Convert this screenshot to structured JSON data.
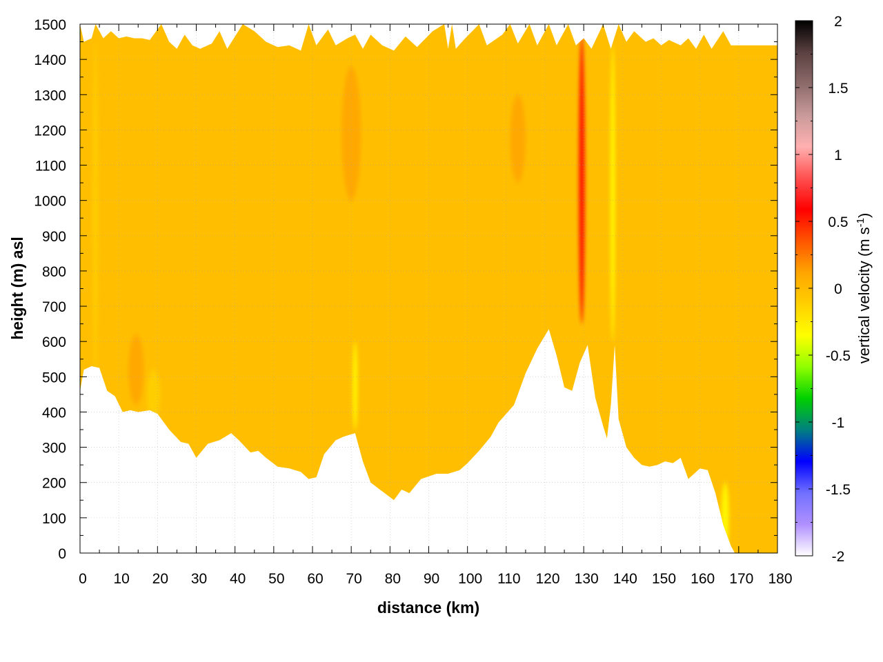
{
  "chart_data": {
    "type": "heatmap",
    "xlabel": "distance (km)",
    "ylabel": "height (m) asl",
    "colorbar_label": "vertical velocity (m s",
    "colorbar_label_sup": "-1",
    "colorbar_label_end": ")",
    "xlim": [
      0,
      180
    ],
    "ylim": [
      0,
      1500
    ],
    "clim": [
      -2,
      2
    ],
    "grid": true,
    "x_ticks": [
      0,
      10,
      20,
      30,
      40,
      50,
      60,
      70,
      80,
      90,
      100,
      110,
      120,
      130,
      140,
      150,
      160,
      170,
      180
    ],
    "x_tick_labels": [
      "0",
      "10",
      "20",
      "30",
      "40",
      "50",
      "60",
      "70",
      "80",
      "90",
      "100",
      "110",
      "120",
      "130",
      "140",
      "150",
      "160",
      "170",
      "180"
    ],
    "y_ticks": [
      0,
      100,
      200,
      300,
      400,
      500,
      600,
      700,
      800,
      900,
      1000,
      1100,
      1200,
      1300,
      1400,
      1500
    ],
    "y_tick_labels": [
      "0",
      "100",
      "200",
      "300",
      "400",
      "500",
      "600",
      "700",
      "800",
      "900",
      "1000",
      "1100",
      "1200",
      "1300",
      "1400",
      "1500"
    ],
    "colorbar_ticks": [
      2,
      1.5,
      1,
      0.5,
      0,
      -0.5,
      -1,
      -1.5,
      -2
    ],
    "colorbar_tick_labels": [
      "2",
      "1.5",
      "1",
      "0.5",
      "0",
      "-0.5",
      "-1",
      "-1.5",
      "-2"
    ],
    "colorbar_colors": [
      "#000000",
      "#5a4040",
      "#8c6a6a",
      "#c99a9a",
      "#ffb0b0",
      "#ff5050",
      "#ff0000",
      "#ff5500",
      "#ffa500",
      "#ffd000",
      "#ffff00",
      "#90ff00",
      "#00d000",
      "#008080",
      "#0000ff",
      "#7070ff",
      "#b090ff",
      "#ffffff"
    ],
    "base_color": "#ffbf00",
    "lower_boundary": [
      [
        0,
        460
      ],
      [
        1,
        520
      ],
      [
        3,
        530
      ],
      [
        5,
        525
      ],
      [
        7,
        460
      ],
      [
        9,
        445
      ],
      [
        11,
        400
      ],
      [
        13,
        405
      ],
      [
        15,
        400
      ],
      [
        18,
        405
      ],
      [
        20,
        395
      ],
      [
        23,
        350
      ],
      [
        26,
        315
      ],
      [
        28,
        310
      ],
      [
        30,
        270
      ],
      [
        33,
        310
      ],
      [
        36,
        320
      ],
      [
        39,
        340
      ],
      [
        41,
        320
      ],
      [
        44,
        285
      ],
      [
        46,
        290
      ],
      [
        48,
        270
      ],
      [
        51,
        245
      ],
      [
        54,
        240
      ],
      [
        57,
        230
      ],
      [
        59,
        210
      ],
      [
        61,
        215
      ],
      [
        63,
        280
      ],
      [
        66,
        320
      ],
      [
        68,
        330
      ],
      [
        71,
        340
      ],
      [
        73,
        260
      ],
      [
        75,
        200
      ],
      [
        78,
        175
      ],
      [
        81,
        150
      ],
      [
        83,
        180
      ],
      [
        85,
        170
      ],
      [
        88,
        210
      ],
      [
        92,
        225
      ],
      [
        95,
        225
      ],
      [
        98,
        235
      ],
      [
        100,
        255
      ],
      [
        103,
        290
      ],
      [
        106,
        330
      ],
      [
        108,
        370
      ],
      [
        112,
        420
      ],
      [
        115,
        510
      ],
      [
        118,
        580
      ],
      [
        121,
        635
      ],
      [
        123,
        560
      ],
      [
        125,
        470
      ],
      [
        127,
        460
      ],
      [
        129,
        540
      ],
      [
        131,
        590
      ],
      [
        133,
        440
      ],
      [
        135,
        360
      ],
      [
        136,
        325
      ],
      [
        137,
        420
      ],
      [
        138,
        590
      ],
      [
        139,
        380
      ],
      [
        141,
        300
      ],
      [
        143,
        270
      ],
      [
        145,
        250
      ],
      [
        147,
        245
      ],
      [
        149,
        250
      ],
      [
        151,
        260
      ],
      [
        153,
        255
      ],
      [
        155,
        270
      ],
      [
        157,
        210
      ],
      [
        160,
        240
      ],
      [
        162,
        235
      ],
      [
        164,
        170
      ],
      [
        166,
        80
      ],
      [
        168,
        20
      ],
      [
        169,
        0
      ],
      [
        180,
        0
      ]
    ],
    "upper_boundary": [
      [
        0,
        1500
      ],
      [
        1,
        1450
      ],
      [
        3,
        1460
      ],
      [
        4,
        1500
      ],
      [
        6,
        1460
      ],
      [
        8,
        1480
      ],
      [
        10,
        1460
      ],
      [
        12,
        1465
      ],
      [
        14,
        1460
      ],
      [
        16,
        1460
      ],
      [
        18,
        1455
      ],
      [
        21,
        1500
      ],
      [
        23,
        1450
      ],
      [
        25,
        1430
      ],
      [
        27,
        1470
      ],
      [
        29,
        1440
      ],
      [
        31,
        1430
      ],
      [
        34,
        1445
      ],
      [
        36,
        1480
      ],
      [
        38,
        1430
      ],
      [
        42,
        1500
      ],
      [
        45,
        1480
      ],
      [
        48,
        1450
      ],
      [
        51,
        1435
      ],
      [
        54,
        1440
      ],
      [
        57,
        1425
      ],
      [
        59,
        1500
      ],
      [
        61,
        1440
      ],
      [
        64,
        1485
      ],
      [
        66,
        1440
      ],
      [
        69,
        1460
      ],
      [
        71,
        1470
      ],
      [
        73,
        1430
      ],
      [
        75,
        1470
      ],
      [
        78,
        1440
      ],
      [
        81,
        1425
      ],
      [
        84,
        1465
      ],
      [
        87,
        1435
      ],
      [
        91,
        1480
      ],
      [
        94,
        1500
      ],
      [
        95,
        1430
      ],
      [
        96,
        1500
      ],
      [
        97,
        1430
      ],
      [
        99,
        1455
      ],
      [
        103,
        1500
      ],
      [
        105,
        1440
      ],
      [
        109,
        1470
      ],
      [
        111,
        1500
      ],
      [
        113,
        1445
      ],
      [
        116,
        1500
      ],
      [
        118,
        1440
      ],
      [
        121,
        1500
      ],
      [
        123,
        1440
      ],
      [
        126,
        1500
      ],
      [
        128,
        1440
      ],
      [
        130,
        1460
      ],
      [
        132,
        1430
      ],
      [
        135,
        1500
      ],
      [
        137,
        1430
      ],
      [
        139,
        1500
      ],
      [
        141,
        1450
      ],
      [
        143,
        1480
      ],
      [
        146,
        1450
      ],
      [
        148,
        1460
      ],
      [
        150,
        1440
      ],
      [
        152,
        1455
      ],
      [
        155,
        1440
      ],
      [
        157,
        1460
      ],
      [
        159,
        1430
      ],
      [
        161,
        1470
      ],
      [
        163,
        1430
      ],
      [
        166,
        1480
      ],
      [
        168,
        1440
      ],
      [
        180,
        1440
      ]
    ],
    "features": [
      {
        "x": 129.5,
        "y_range": [
          650,
          1470
        ],
        "width_km": 1.6,
        "value": 0.6
      },
      {
        "x": 137.5,
        "y_range": [
          600,
          1440
        ],
        "width_km": 1.2,
        "value": -0.25
      },
      {
        "x": 71,
        "y_range": [
          350,
          600
        ],
        "width_km": 1.2,
        "value": -0.25
      },
      {
        "x": 19,
        "y_range": [
          380,
          520
        ],
        "width_km": 3.5,
        "value": -0.2
      },
      {
        "x": 14.5,
        "y_range": [
          420,
          620
        ],
        "width_km": 4,
        "value": 0.2
      },
      {
        "x": 70,
        "y_range": [
          1000,
          1380
        ],
        "width_km": 5,
        "value": 0.12
      },
      {
        "x": 113,
        "y_range": [
          1050,
          1300
        ],
        "width_km": 4,
        "value": 0.1
      },
      {
        "x": 4,
        "y_range": [
          500,
          1450
        ],
        "width_km": 1.2,
        "value": -0.15
      },
      {
        "x": 166.5,
        "y_range": [
          0,
          200
        ],
        "width_km": 2,
        "value": -0.25
      }
    ]
  }
}
